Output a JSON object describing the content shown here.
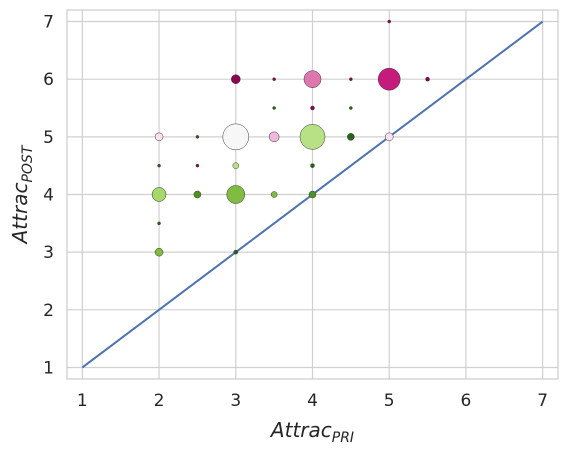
{
  "chart_data": {
    "type": "scatter",
    "title": "",
    "xlabel": {
      "main": "Attrac",
      "sub": "PRI"
    },
    "ylabel": {
      "main": "Attrac",
      "sub": "POST"
    },
    "xlim": [
      0.8,
      7.2
    ],
    "ylim": [
      0.8,
      7.2
    ],
    "xticks": [
      "1",
      "2",
      "3",
      "4",
      "5",
      "6",
      "7"
    ],
    "yticks": [
      "1",
      "2",
      "3",
      "4",
      "5",
      "6",
      "7"
    ],
    "grid": true,
    "identity_line": {
      "from": [
        1,
        1
      ],
      "to": [
        7,
        7
      ],
      "color": "#4c72b0"
    },
    "points": [
      {
        "x": 2,
        "y": 5,
        "size": 4,
        "color": "#fde0ef"
      },
      {
        "x": 2,
        "y": 4.5,
        "size": 1.5,
        "color": "#276419"
      },
      {
        "x": 2,
        "y": 4,
        "size": 7,
        "color": "#a6d96a"
      },
      {
        "x": 2,
        "y": 3.5,
        "size": 1.5,
        "color": "#276419"
      },
      {
        "x": 2,
        "y": 3,
        "size": 4,
        "color": "#7fbc41"
      },
      {
        "x": 2.5,
        "y": 5,
        "size": 1.5,
        "color": "#276419"
      },
      {
        "x": 2.5,
        "y": 4.5,
        "size": 1.5,
        "color": "#8e0152"
      },
      {
        "x": 2.5,
        "y": 4,
        "size": 3.5,
        "color": "#4d9221"
      },
      {
        "x": 3,
        "y": 6,
        "size": 4.5,
        "color": "#8e0152"
      },
      {
        "x": 3,
        "y": 5,
        "size": 13,
        "color": "#f7f7f7"
      },
      {
        "x": 3,
        "y": 4.5,
        "size": 3,
        "color": "#b8e186"
      },
      {
        "x": 3,
        "y": 4,
        "size": 9,
        "color": "#7fbc41"
      },
      {
        "x": 3,
        "y": 3,
        "size": 2,
        "color": "#276419"
      },
      {
        "x": 3.5,
        "y": 6,
        "size": 1.5,
        "color": "#8e0152"
      },
      {
        "x": 3.5,
        "y": 5.5,
        "size": 1.5,
        "color": "#276419"
      },
      {
        "x": 3.5,
        "y": 5,
        "size": 5,
        "color": "#f1b6da"
      },
      {
        "x": 3.5,
        "y": 4,
        "size": 3,
        "color": "#7fbc41"
      },
      {
        "x": 4,
        "y": 6,
        "size": 8.5,
        "color": "#de77ae"
      },
      {
        "x": 4,
        "y": 5.5,
        "size": 2,
        "color": "#8e0152"
      },
      {
        "x": 4,
        "y": 5,
        "size": 12.5,
        "color": "#b8e186"
      },
      {
        "x": 4,
        "y": 4.5,
        "size": 2,
        "color": "#276419"
      },
      {
        "x": 4,
        "y": 4,
        "size": 3.5,
        "color": "#4d9221"
      },
      {
        "x": 4.5,
        "y": 6,
        "size": 1.5,
        "color": "#8e0152"
      },
      {
        "x": 4.5,
        "y": 5.5,
        "size": 1.5,
        "color": "#276419"
      },
      {
        "x": 4.5,
        "y": 5,
        "size": 3.5,
        "color": "#276419"
      },
      {
        "x": 5,
        "y": 7,
        "size": 1.5,
        "color": "#8e0152"
      },
      {
        "x": 5,
        "y": 6,
        "size": 11,
        "color": "#c51b7d"
      },
      {
        "x": 5,
        "y": 5,
        "size": 4,
        "color": "#fde0ef"
      },
      {
        "x": 5.5,
        "y": 6,
        "size": 2,
        "color": "#8e0152"
      }
    ]
  }
}
